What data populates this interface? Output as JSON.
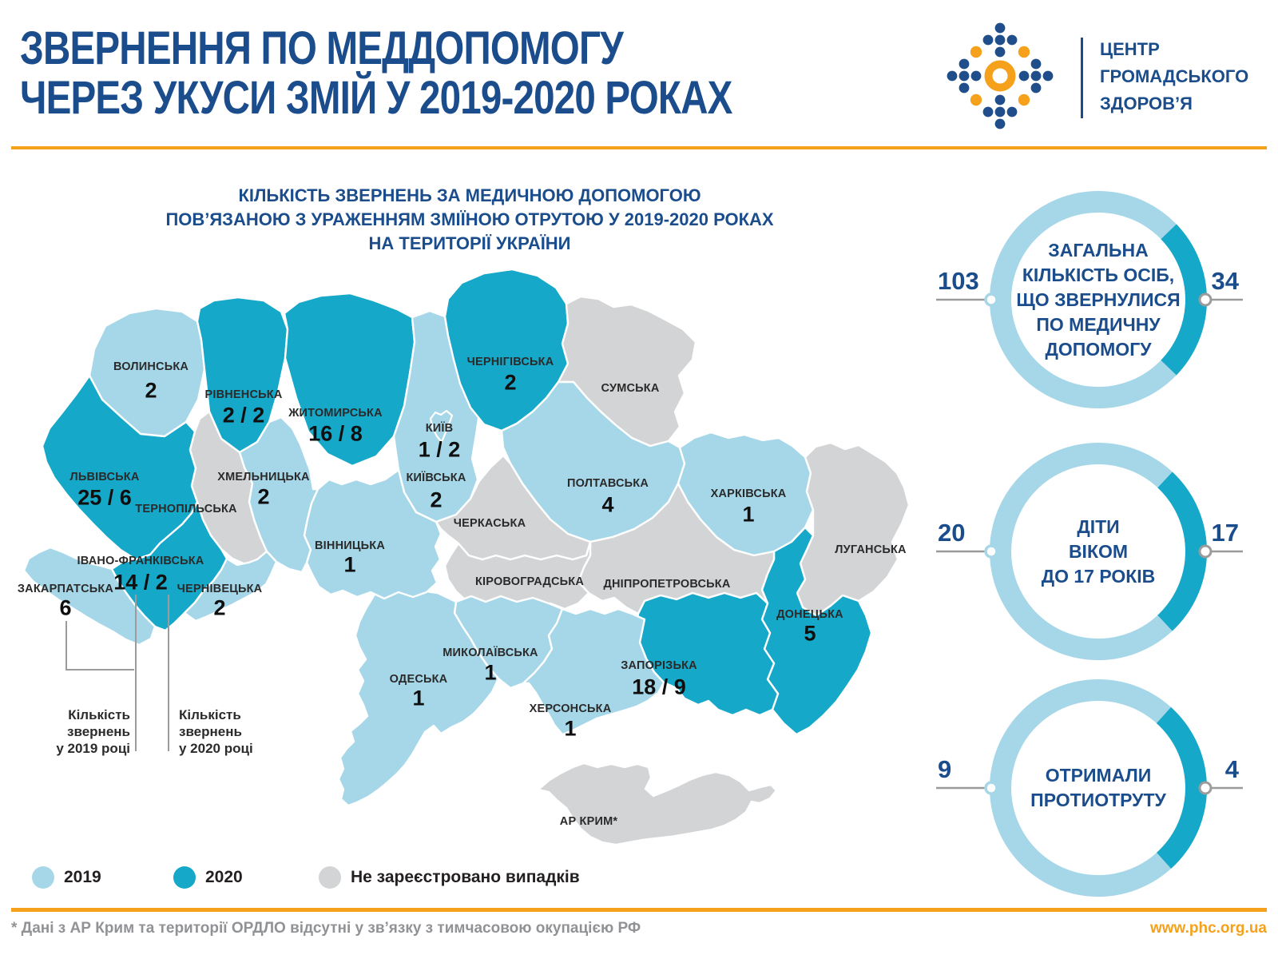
{
  "header": {
    "title": "ЗВЕРНЕННЯ ПО МЕДДОПОМОГУ\nЧЕРЕЗ УКУСИ ЗМІЙ У 2019-2020 РОКАХ",
    "logo_text": "ЦЕНТР\nГРОМАДСЬКОГО\nЗДОРОВ’Я"
  },
  "map": {
    "title": "КІЛЬКІСТЬ ЗВЕРНЕНЬ ЗА МЕДИЧНОЮ ДОПОМОГОЮ\nПОВ’ЯЗАНОЮ З УРАЖЕННЯМ ЗМІЇНОЮ ОТРУТОЮ У 2019-2020 РОКАХ\nНА ТЕРИТОРІЇ УКРАЇНИ",
    "annotation_2019": "Кількість\nзвернень\nу 2019 році",
    "annotation_2020": "Кількість\nзвернень\nу 2020 році",
    "regions": {
      "volyn": {
        "name": "ВОЛИНСЬКА",
        "value": "2"
      },
      "rivne": {
        "name": "РІВНЕНСЬКА",
        "value": "2 / 2"
      },
      "zhytomyr": {
        "name": "ЖИТОМИРСЬКА",
        "value": "16 / 8"
      },
      "kyivska": {
        "name": "КИЇВСЬКА",
        "value": "2"
      },
      "kyiv_city": {
        "name": "КИЇВ",
        "value": "1 / 2"
      },
      "chernihiv": {
        "name": "ЧЕРНІГІВСЬКА",
        "value": "2"
      },
      "sumy": {
        "name": "СУМСЬКА",
        "value": null
      },
      "poltava": {
        "name": "ПОЛТАВСЬКА",
        "value": "4"
      },
      "kharkiv": {
        "name": "ХАРКІВСЬКА",
        "value": "1"
      },
      "luhansk": {
        "name": "ЛУГАНСЬКА",
        "value": null
      },
      "donetsk": {
        "name": "ДОНЕЦЬКА",
        "value": "5"
      },
      "zaporizhzhia": {
        "name": "ЗАПОРІЗЬКА",
        "value": "18 / 9"
      },
      "dnipro": {
        "name": "ДНІПРОПЕТРОВСЬКА",
        "value": null
      },
      "kirovohrad": {
        "name": "КІРОВОГРАДСЬКА",
        "value": null
      },
      "cherkasy": {
        "name": "ЧЕРКАСЬКА",
        "value": null
      },
      "mykolaiv": {
        "name": "МИКОЛАЇВСЬКА",
        "value": "1"
      },
      "odesa": {
        "name": "ОДЕСЬКА",
        "value": "1"
      },
      "kherson": {
        "name": "ХЕРСОНСЬКА",
        "value": "1"
      },
      "crimea": {
        "name": "АР КРИМ*",
        "value": null
      },
      "lviv": {
        "name": "ЛЬВІВСЬКА",
        "value": "25 / 6"
      },
      "ternopil": {
        "name": "ТЕРНОПІЛЬСЬКА",
        "value": null
      },
      "khmelnytskyi": {
        "name": "ХМЕЛЬНИЦЬКА",
        "value": "2"
      },
      "vinnytsia": {
        "name": "ВІННИЦЬКА",
        "value": "1"
      },
      "ivano_frankivsk": {
        "name": "ІВАНО-ФРАНКІВСЬКА",
        "value": "14 / 2"
      },
      "zakarpattia": {
        "name": "ЗАКАРПАТСЬКА",
        "value": "6"
      },
      "chernivtsi": {
        "name": "ЧЕРНІВЕЦЬКА",
        "value": "2"
      }
    }
  },
  "legend": {
    "items": [
      {
        "label": "2019",
        "color": "#a6d7e8"
      },
      {
        "label": "2020",
        "color": "#16a8c8"
      },
      {
        "label": "Не зареєстровано випадків",
        "color": "#d3d4d6"
      }
    ]
  },
  "donuts": [
    {
      "label": "ЗАГАЛЬНА\nКІЛЬКІСТЬ ОСІБ,\nЩО ЗВЕРНУЛИСЯ\nПО МЕДИЧНУ\nДОПОМОГУ",
      "left_value": "103",
      "right_value": "34"
    },
    {
      "label": "ДІТИ\nВІКОМ\nДО 17 РОКІВ",
      "left_value": "20",
      "right_value": "17"
    },
    {
      "label": "ОТРИМАЛИ\nПРОТИОТРУТУ",
      "left_value": "9",
      "right_value": "4"
    }
  ],
  "footer": {
    "note": "* Дані з АР Крим та території ОРДЛО відсутні у зв’язку з тимчасовою окупацією РФ",
    "website": "www.phc.org.ua"
  },
  "colors": {
    "year2019": "#a6d7e8",
    "year2020": "#16a8c8",
    "no_cases": "#d3d4d6",
    "brand_blue": "#1b4d8c",
    "accent_orange": "#f5a11c",
    "callout_gray": "#9b9b9b"
  },
  "chart_data": [
    {
      "type": "map",
      "title": "КІЛЬКІСТЬ ЗВЕРНЕНЬ ЗА МЕДИЧНОЮ ДОПОМОГОЮ ПОВ’ЯЗАНОЮ З УРАЖЕННЯМ ЗМІЇНОЮ ОТРУТОЮ У 2019-2020 РОКАХ НА ТЕРИТОРІЇ УКРАЇНИ",
      "legend": [
        "2019",
        "2020",
        "Не зареєстровано випадків"
      ],
      "regions": [
        {
          "name": "Волинська",
          "y2019": 2,
          "y2020": null
        },
        {
          "name": "Рівненська",
          "y2019": 2,
          "y2020": 2
        },
        {
          "name": "Житомирська",
          "y2019": 16,
          "y2020": 8
        },
        {
          "name": "Київська",
          "y2019": 2,
          "y2020": null
        },
        {
          "name": "Київ",
          "y2019": 1,
          "y2020": 2
        },
        {
          "name": "Чернігівська",
          "y2019": null,
          "y2020": 2
        },
        {
          "name": "Сумська",
          "y2019": null,
          "y2020": null
        },
        {
          "name": "Полтавська",
          "y2019": 4,
          "y2020": null
        },
        {
          "name": "Харківська",
          "y2019": 1,
          "y2020": null
        },
        {
          "name": "Луганська",
          "y2019": null,
          "y2020": null
        },
        {
          "name": "Донецька",
          "y2019": null,
          "y2020": 5
        },
        {
          "name": "Запорізька",
          "y2019": 18,
          "y2020": 9
        },
        {
          "name": "Дніпропетровська",
          "y2019": null,
          "y2020": null
        },
        {
          "name": "Кіровоградська",
          "y2019": null,
          "y2020": null
        },
        {
          "name": "Черкаська",
          "y2019": null,
          "y2020": null
        },
        {
          "name": "Миколаївська",
          "y2019": 1,
          "y2020": null
        },
        {
          "name": "Одеська",
          "y2019": 1,
          "y2020": null
        },
        {
          "name": "Херсонська",
          "y2019": 1,
          "y2020": null
        },
        {
          "name": "АР Крим",
          "y2019": null,
          "y2020": null
        },
        {
          "name": "Львівська",
          "y2019": 25,
          "y2020": 6
        },
        {
          "name": "Тернопільська",
          "y2019": null,
          "y2020": null
        },
        {
          "name": "Хмельницька",
          "y2019": 2,
          "y2020": null
        },
        {
          "name": "Вінницька",
          "y2019": 1,
          "y2020": null
        },
        {
          "name": "Івано-Франківська",
          "y2019": 14,
          "y2020": 2
        },
        {
          "name": "Закарпатська",
          "y2019": 6,
          "y2020": null
        },
        {
          "name": "Чернівецька",
          "y2019": 2,
          "y2020": null
        }
      ]
    },
    {
      "type": "pie",
      "title": "ЗАГАЛЬНА КІЛЬКІСТЬ ОСІБ, ЩО ЗВЕРНУЛИСЯ ПО МЕДИЧНУ ДОПОМОГУ",
      "categories": [
        "2019",
        "2020"
      ],
      "values": [
        103,
        34
      ]
    },
    {
      "type": "pie",
      "title": "ДІТИ ВІКОМ ДО 17 РОКІВ",
      "categories": [
        "2019",
        "2020"
      ],
      "values": [
        20,
        17
      ]
    },
    {
      "type": "pie",
      "title": "ОТРИМАЛИ ПРОТИОТРУТУ",
      "categories": [
        "2019",
        "2020"
      ],
      "values": [
        9,
        4
      ]
    }
  ]
}
